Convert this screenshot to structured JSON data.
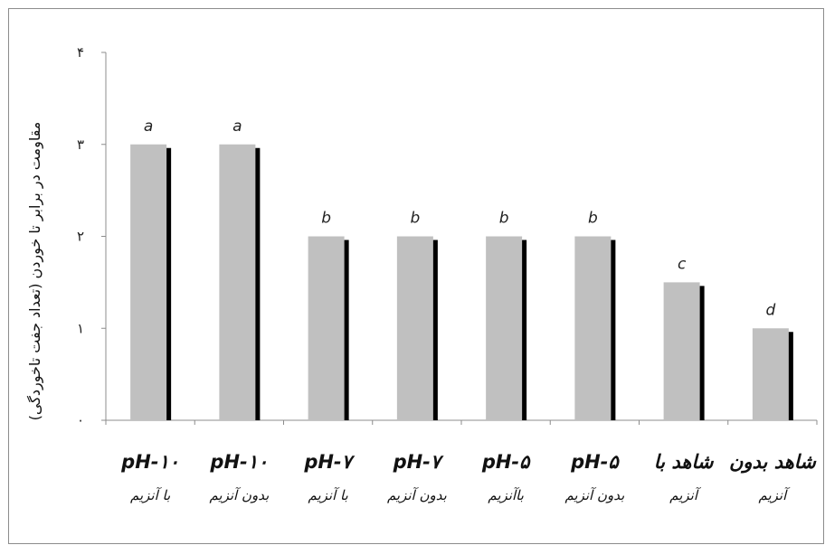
{
  "chart_data": {
    "type": "bar",
    "categories": [
      [
        "pH-۱۰",
        "با آنزیم"
      ],
      [
        "pH-۱۰",
        "بدون آنزیم"
      ],
      [
        "pH-۷",
        "با آنزیم"
      ],
      [
        "pH-۷",
        "بدون آنزیم"
      ],
      [
        "pH-۵",
        "باآنزیم"
      ],
      [
        "pH-۵",
        "بدون آنزیم"
      ],
      [
        "شاهد با",
        "آنزیم"
      ],
      [
        "شاهد بدون",
        "آنزیم"
      ]
    ],
    "values": [
      3,
      3,
      2,
      2,
      2,
      2,
      1.5,
      1
    ],
    "significance_letters": [
      "a",
      "a",
      "b",
      "b",
      "b",
      "b",
      "c",
      "d"
    ],
    "ylabel": "مقاومت در برابر تا خوردن (تعداد جفت تاخوردگی)",
    "ylim": [
      0,
      4
    ],
    "yticks": [
      0,
      1,
      2,
      3,
      4
    ],
    "ytick_labels": [
      "۰",
      "۱",
      "۲",
      "۳",
      "۴"
    ],
    "grid": false,
    "colors": {
      "bar": "#c0c0c0",
      "shadow": "#000000",
      "axis": "#8c8c8c"
    }
  }
}
